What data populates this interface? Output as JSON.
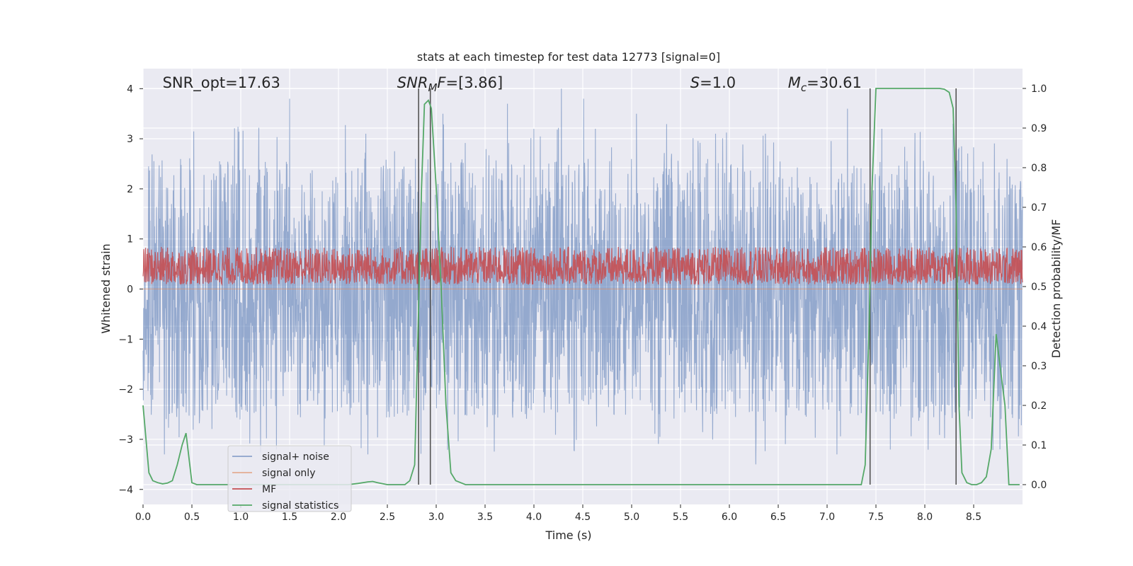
{
  "chart_data": {
    "type": "line",
    "title": "stats at each timestep for test data 12773 [signal=0]",
    "xlabel": "Time (s)",
    "ylabel": "Whitened strain",
    "ylabel_right": "Detection probability/MF",
    "xlim": [
      0.0,
      9.0
    ],
    "ylim": [
      -4.3,
      4.4
    ],
    "ylim_right": [
      -0.05,
      1.05
    ],
    "x_ticks": [
      0.0,
      0.5,
      1.0,
      1.5,
      2.0,
      2.5,
      3.0,
      3.5,
      4.0,
      4.5,
      5.0,
      5.5,
      6.0,
      6.5,
      7.0,
      7.5,
      8.0,
      8.5
    ],
    "x_tick_labels": [
      "0.0",
      "0.5",
      "1.0",
      "1.5",
      "2.0",
      "2.5",
      "3.0",
      "3.5",
      "4.0",
      "4.5",
      "5.0",
      "5.5",
      "6.0",
      "6.5",
      "7.0",
      "7.5",
      "8.0",
      "8.5"
    ],
    "y_ticks": [
      -4,
      -3,
      -2,
      -1,
      0,
      1,
      2,
      3,
      4
    ],
    "y_tick_labels": [
      "−4",
      "−3",
      "−2",
      "−1",
      "0",
      "1",
      "2",
      "3",
      "4"
    ],
    "y_right_ticks": [
      0.0,
      0.1,
      0.2,
      0.3,
      0.4,
      0.5,
      0.6,
      0.7,
      0.8,
      0.9,
      1.0
    ],
    "y_right_tick_labels": [
      "0.0",
      "0.1",
      "0.2",
      "0.3",
      "0.4",
      "0.5",
      "0.6",
      "0.7",
      "0.8",
      "0.9",
      "1.0"
    ],
    "grid": true,
    "legend_position": "lower-left",
    "annotations": [
      {
        "id": "snr-opt",
        "text": "SNR_opt=17.63",
        "x": 0.2
      },
      {
        "id": "snr-mf",
        "text": "SNR_MF=[3.86]",
        "x": 2.6
      },
      {
        "id": "s-val",
        "text": "S=1.0",
        "x": 5.6
      },
      {
        "id": "mc-val",
        "text": "M_c=30.61",
        "x": 6.6
      }
    ],
    "vertical_lines": [
      2.82,
      2.94,
      7.44,
      8.32
    ],
    "series": [
      {
        "name": "signal+ noise",
        "color": "#4c72b0",
        "kind": "noise-band",
        "note_range": [
          -2.5,
          2.5
        ],
        "peaks": [
          {
            "x": 1.5,
            "y": 3.8
          },
          {
            "x": 4.28,
            "y": 4.0
          },
          {
            "x": 4.51,
            "y": 3.8
          },
          {
            "x": 3.73,
            "y": 3.7
          },
          {
            "x": 5.05,
            "y": 3.5
          },
          {
            "x": 2.28,
            "y": 3.1
          },
          {
            "x": 3.07,
            "y": 3.5
          },
          {
            "x": 4.63,
            "y": 3.2
          },
          {
            "x": 5.86,
            "y": 3.1
          },
          {
            "x": 7.21,
            "y": 3.6
          },
          {
            "x": 7.56,
            "y": 3.2
          },
          {
            "x": 8.29,
            "y": 3.3
          },
          {
            "x": 6.37,
            "y": 3.1
          },
          {
            "x": 2.3,
            "y": -3.3
          },
          {
            "x": 6.27,
            "y": -3.5
          },
          {
            "x": 7.1,
            "y": -3.3
          },
          {
            "x": 0.22,
            "y": -3.3
          },
          {
            "x": 8.77,
            "y": -3.2
          },
          {
            "x": 4.82,
            "y": -2.5
          }
        ]
      },
      {
        "name": "signal only",
        "color": "#dd8452",
        "values_summary": "flat at 0"
      },
      {
        "name": "MF",
        "color": "#c44e52",
        "kind": "band",
        "band_right_axis": [
          0.505,
          0.6
        ]
      },
      {
        "name": "signal statistics",
        "color": "#55a868",
        "axis": "right",
        "x": [
          0.0,
          0.06,
          0.1,
          0.15,
          0.2,
          0.25,
          0.3,
          0.35,
          0.4,
          0.44,
          0.5,
          0.55,
          0.6,
          0.8,
          1.0,
          1.2,
          1.5,
          1.8,
          2.0,
          2.1,
          2.2,
          2.3,
          2.35,
          2.4,
          2.5,
          2.6,
          2.68,
          2.73,
          2.78,
          2.82,
          2.85,
          2.88,
          2.92,
          2.95,
          3.0,
          3.05,
          3.1,
          3.15,
          3.2,
          3.3,
          3.4,
          3.5,
          3.7,
          4.0,
          5.0,
          6.0,
          7.0,
          7.35,
          7.39,
          7.43,
          7.46,
          7.5,
          7.55,
          7.7,
          8.0,
          8.15,
          8.2,
          8.25,
          8.29,
          8.32,
          8.35,
          8.38,
          8.43,
          8.48,
          8.53,
          8.58,
          8.63,
          8.68,
          8.73,
          8.78,
          8.82,
          8.86,
          8.92,
          8.97
        ],
        "y": [
          0.2,
          0.03,
          0.01,
          0.005,
          0.002,
          0.004,
          0.01,
          0.05,
          0.1,
          0.13,
          0.005,
          0.0,
          0.0,
          0.0,
          0.0,
          0.0,
          0.0,
          0.0,
          0.0,
          0.0,
          0.003,
          0.007,
          0.008,
          0.005,
          0.0,
          0.0,
          0.0,
          0.01,
          0.05,
          0.45,
          0.75,
          0.96,
          0.97,
          0.95,
          0.75,
          0.5,
          0.2,
          0.03,
          0.01,
          0.0,
          0.0,
          0.0,
          0.0,
          0.0,
          0.0,
          0.0,
          0.0,
          0.0,
          0.05,
          0.4,
          0.75,
          1.0,
          1.0,
          1.0,
          1.0,
          1.0,
          0.998,
          0.99,
          0.95,
          0.7,
          0.2,
          0.03,
          0.005,
          0.0,
          0.0,
          0.005,
          0.02,
          0.09,
          0.38,
          0.28,
          0.2,
          0.0,
          0.0,
          0.0
        ]
      }
    ]
  }
}
